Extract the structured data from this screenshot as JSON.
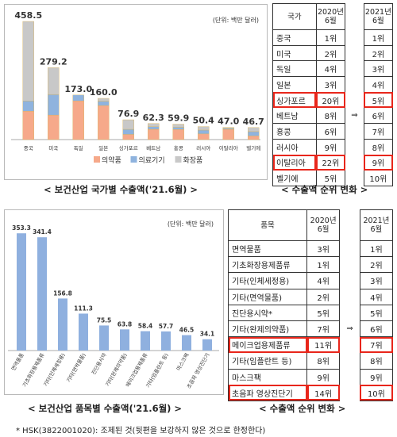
{
  "top": {
    "chart_data": {
      "type": "bar",
      "stacked": true,
      "unit_label": "(단위: 백만 달러)",
      "categories": [
        "중국",
        "미국",
        "독일",
        "일본",
        "싱가포르",
        "베트남",
        "홍콩",
        "러시아",
        "이탈리아",
        "벨기에"
      ],
      "totals": [
        "458.5",
        "279.2",
        "173.0",
        "160.0",
        "76.9",
        "62.3",
        "59.9",
        "50.4",
        "47.0",
        "46.7"
      ],
      "series": [
        {
          "name": "의약품",
          "color": "#f6a98a",
          "values": [
            110,
            95,
            150,
            132,
            20,
            40,
            39,
            22,
            40,
            14
          ]
        },
        {
          "name": "의료기기",
          "color": "#8fb3de",
          "values": [
            40,
            80,
            23,
            17,
            20,
            10,
            9,
            15,
            4,
            17
          ]
        },
        {
          "name": "화장품",
          "color": "#c8c8c8",
          "values": [
            308.5,
            104.2,
            0,
            11,
            36.9,
            12.3,
            11.9,
            13.4,
            3,
            15.7
          ]
        }
      ],
      "ylim": [
        0,
        480
      ]
    },
    "caption": "< 보건산업 국가별 수출액('21.6월) >"
  },
  "top_table": {
    "headers": [
      "국가",
      "2020년 6월",
      "2021년 6월"
    ],
    "rows": [
      {
        "name": "중국",
        "r2020": "1위",
        "r2021": "1위",
        "hl": false
      },
      {
        "name": "미국",
        "r2020": "2위",
        "r2021": "2위",
        "hl": false
      },
      {
        "name": "독일",
        "r2020": "4위",
        "r2021": "3위",
        "hl": false
      },
      {
        "name": "일본",
        "r2020": "3위",
        "r2021": "4위",
        "hl": false
      },
      {
        "name": "싱가포르",
        "r2020": "20위",
        "r2021": "5위",
        "hl": true
      },
      {
        "name": "베트남",
        "r2020": "8위",
        "r2021": "6위",
        "hl": false
      },
      {
        "name": "홍콩",
        "r2020": "6위",
        "r2021": "7위",
        "hl": false
      },
      {
        "name": "러시아",
        "r2020": "9위",
        "r2021": "8위",
        "hl": false
      },
      {
        "name": "이탈리아",
        "r2020": "22위",
        "r2021": "9위",
        "hl": true
      },
      {
        "name": "벨기에",
        "r2020": "5위",
        "r2021": "10위",
        "hl": false
      }
    ],
    "arrow": "⇒",
    "caption": "< 수출액 순위 변화 >"
  },
  "bottom": {
    "chart_data": {
      "type": "bar",
      "unit_label": "(단위: 백만 달러)",
      "categories": [
        "면역물품",
        "기초화장용제품류",
        "기타(인체세정용)",
        "기타(면역물품)",
        "진단용시약",
        "기타(완제의약품)",
        "메이크업용제품류",
        "기타(임플란트 등)",
        "마스크팩",
        "초음파 영상진단기"
      ],
      "labels": [
        "353.3",
        "341.4",
        "156.8",
        "111.3",
        "75.5",
        "63.8",
        "58.4",
        "57.7",
        "46.5",
        "34.1"
      ],
      "values": [
        353.3,
        341.4,
        156.8,
        111.3,
        75.5,
        63.8,
        58.4,
        57.7,
        46.5,
        34.1
      ],
      "color": "#8fb0df",
      "ylim": [
        0,
        380
      ]
    },
    "caption": "< 보건산업 품목별 수출액('21.6월) >"
  },
  "bottom_table": {
    "headers": [
      "품목",
      "2020년 6월",
      "2021년 6월"
    ],
    "rows": [
      {
        "name": "면역물품",
        "r2020": "3위",
        "r2021": "1위",
        "hl": false
      },
      {
        "name": "기초화장용제품류",
        "r2020": "1위",
        "r2021": "2위",
        "hl": false
      },
      {
        "name": "기타(인체세정용)",
        "r2020": "4위",
        "r2021": "3위",
        "hl": false
      },
      {
        "name": "기타(면역물품)",
        "r2020": "2위",
        "r2021": "4위",
        "hl": false
      },
      {
        "name": "진단용시약*",
        "r2020": "5위",
        "r2021": "5위",
        "hl": false
      },
      {
        "name": "기타(완제의약품)",
        "r2020": "7위",
        "r2021": "6위",
        "hl": false
      },
      {
        "name": "메이크업용제품류",
        "r2020": "11위",
        "r2021": "7위",
        "hl": true
      },
      {
        "name": "기타(임플란트 등)",
        "r2020": "8위",
        "r2021": "8위",
        "hl": false
      },
      {
        "name": "마스크팩",
        "r2020": "9위",
        "r2021": "9위",
        "hl": false
      },
      {
        "name": "초음파 영상진단기",
        "r2020": "14위",
        "r2021": "10위",
        "hl": true
      }
    ],
    "arrow": "⇒",
    "caption": "< 수출액 순위 변화 >"
  },
  "footnote": "* HSK(3822001020): 조제된 것(뒷편을 보강하지 않은 것으로 한정한다)"
}
